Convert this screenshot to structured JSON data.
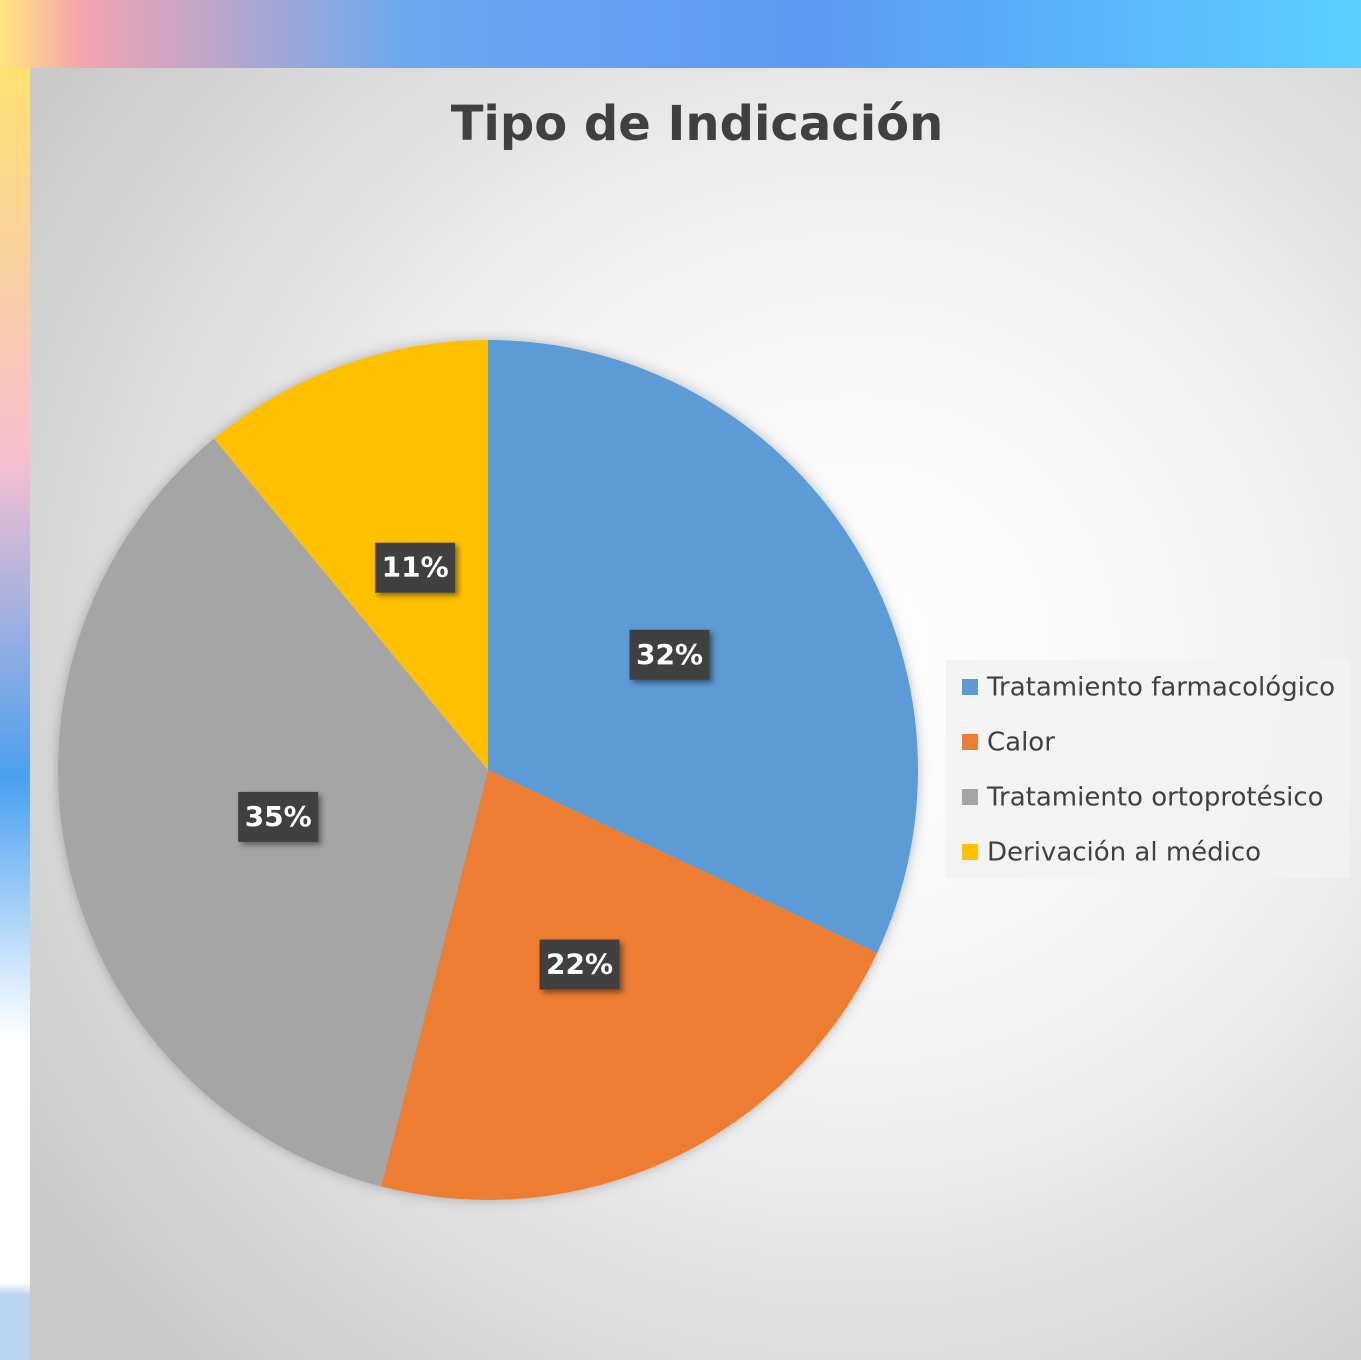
{
  "chart_data": {
    "type": "pie",
    "title": "Tipo de Indicación",
    "categories": [
      "Tratamiento farmacológico",
      "Calor",
      "Tratamiento ortoprotésico",
      "Derivación al médico"
    ],
    "values": [
      32,
      22,
      35,
      11
    ],
    "value_labels": [
      "32%",
      "22%",
      "35%",
      "11%"
    ],
    "colors": [
      "#5b9bd5",
      "#ed7d31",
      "#a5a5a5",
      "#ffc000"
    ],
    "legend": "right"
  }
}
